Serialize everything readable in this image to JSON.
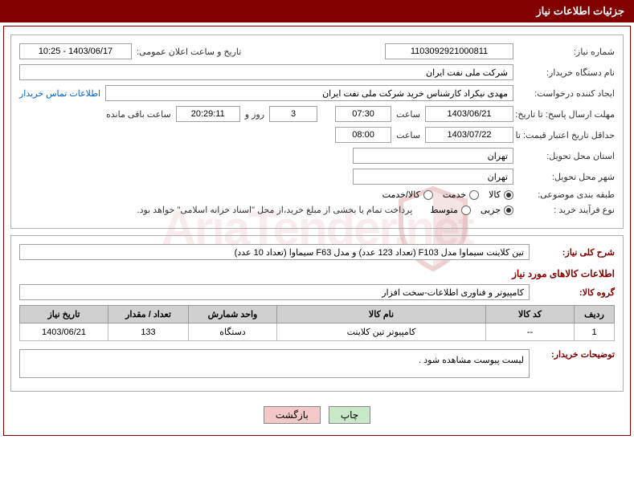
{
  "header": {
    "title": "جزئیات اطلاعات نیاز"
  },
  "watermark": {
    "text": "AriaTender.net"
  },
  "form": {
    "need_no_label": "شماره نیاز:",
    "need_no": "1103092921000811",
    "announce_label": "تاریخ و ساعت اعلان عمومی:",
    "announce_value": "1403/06/17 - 10:25",
    "buyer_org_label": "نام دستگاه خریدار:",
    "buyer_org": "شرکت ملی نفت ایران",
    "requester_label": "ایجاد کننده درخواست:",
    "requester": "مهدی نیکراد کارشناس خرید شرکت ملی نفت ایران",
    "contact_link": "اطلاعات تماس خریدار",
    "deadline_label": "مهلت ارسال پاسخ: تا تاریخ:",
    "deadline_date": "1403/06/21",
    "time_label": "ساعت",
    "deadline_time": "07:30",
    "days_count": "3",
    "days_and": "روز و",
    "countdown": "20:29:11",
    "remaining_label": "ساعت باقی مانده",
    "validity_label": "حداقل تاریخ اعتبار قیمت: تا تاریخ:",
    "validity_date": "1403/07/22",
    "validity_time": "08:00",
    "province_label": "استان محل تحویل:",
    "province": "تهران",
    "city_label": "شهر محل تحویل:",
    "city": "تهران",
    "category_label": "طبقه بندی موضوعی:",
    "cat_goods": "کالا",
    "cat_service": "خدمت",
    "cat_both": "کالا/خدمت",
    "process_label": "نوع فرآیند خرید :",
    "proc_partial": "جزیی",
    "proc_medium": "متوسط",
    "payment_note": "پرداخت تمام یا بخشی از مبلغ خرید،از محل \"اسناد خزانه اسلامی\" خواهد بود."
  },
  "desc": {
    "title_label": "شرح کلی نیاز:",
    "title_value": "تین کلاینت سیماوا مدل F103 (تعداد 123 عدد) و مدل F63 سیماوا (تعداد 10 عدد)",
    "goods_info_title": "اطلاعات کالاهای مورد نیاز",
    "group_label": "گروه کالا:",
    "group_value": "کامپیوتر و فناوری اطلاعات-سخت افزار"
  },
  "table": {
    "headers": {
      "row": "ردیف",
      "code": "کد کالا",
      "name": "نام کالا",
      "unit": "واحد شمارش",
      "qty": "تعداد / مقدار",
      "date": "تاریخ نیاز"
    },
    "rows": [
      {
        "row": "1",
        "code": "--",
        "name": "کامپیوتر تین کلاینت",
        "unit": "دستگاه",
        "qty": "133",
        "date": "1403/06/21"
      }
    ]
  },
  "notes": {
    "label": "توضیحات خریدار:",
    "value": "لیست پیوست مشاهده شود ."
  },
  "buttons": {
    "print": "چاپ",
    "back": "بازگشت"
  },
  "colors": {
    "maroon": "#800000",
    "header_text": "#ffffff",
    "border_gray": "#a0a0a0",
    "th_bg": "#d0d0d0",
    "link": "#0066cc"
  }
}
